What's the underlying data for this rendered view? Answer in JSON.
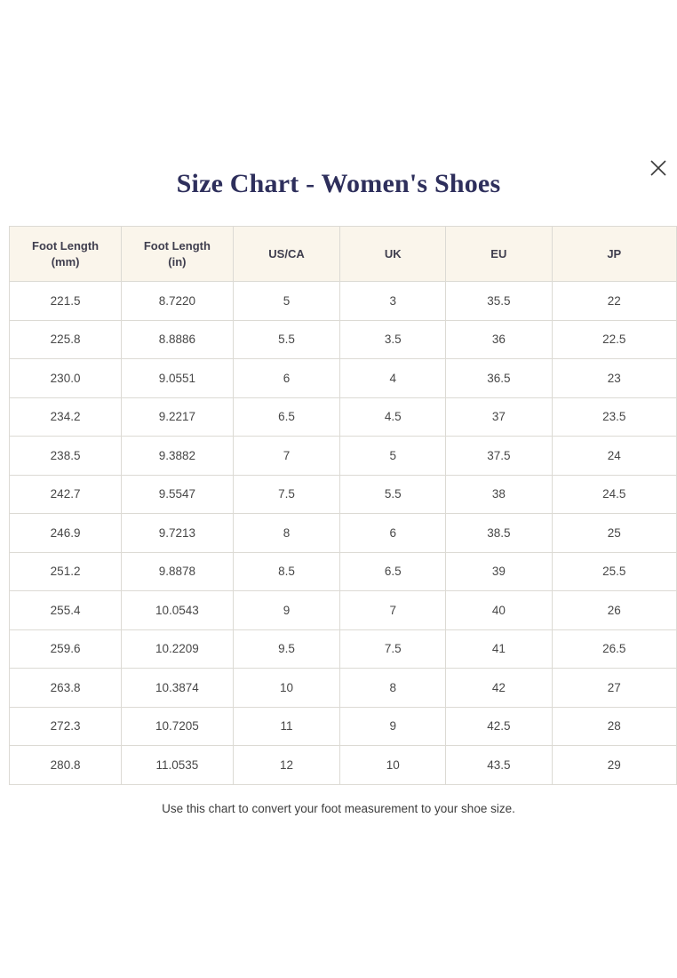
{
  "modal": {
    "title": "Size Chart - Women's Shoes",
    "footnote": "Use this chart to convert your foot measurement to your shoe size."
  },
  "icons": {
    "close": "close-icon"
  },
  "colors": {
    "title": "#2e2f5c",
    "header_bg": "#faf5eb",
    "border": "#dcdad4",
    "body_text": "#474747"
  },
  "table": {
    "headers": [
      "Foot Length (mm)",
      "Foot Length (in)",
      "US/CA",
      "UK",
      "EU",
      "JP"
    ],
    "rows": [
      [
        "221.5",
        "8.7220",
        "5",
        "3",
        "35.5",
        "22"
      ],
      [
        "225.8",
        "8.8886",
        "5.5",
        "3.5",
        "36",
        "22.5"
      ],
      [
        "230.0",
        "9.0551",
        "6",
        "4",
        "36.5",
        "23"
      ],
      [
        "234.2",
        "9.2217",
        "6.5",
        "4.5",
        "37",
        "23.5"
      ],
      [
        "238.5",
        "9.3882",
        "7",
        "5",
        "37.5",
        "24"
      ],
      [
        "242.7",
        "9.5547",
        "7.5",
        "5.5",
        "38",
        "24.5"
      ],
      [
        "246.9",
        "9.7213",
        "8",
        "6",
        "38.5",
        "25"
      ],
      [
        "251.2",
        "9.8878",
        "8.5",
        "6.5",
        "39",
        "25.5"
      ],
      [
        "255.4",
        "10.0543",
        "9",
        "7",
        "40",
        "26"
      ],
      [
        "259.6",
        "10.2209",
        "9.5",
        "7.5",
        "41",
        "26.5"
      ],
      [
        "263.8",
        "10.3874",
        "10",
        "8",
        "42",
        "27"
      ],
      [
        "272.3",
        "10.7205",
        "11",
        "9",
        "42.5",
        "28"
      ],
      [
        "280.8",
        "11.0535",
        "12",
        "10",
        "43.5",
        "29"
      ]
    ]
  }
}
